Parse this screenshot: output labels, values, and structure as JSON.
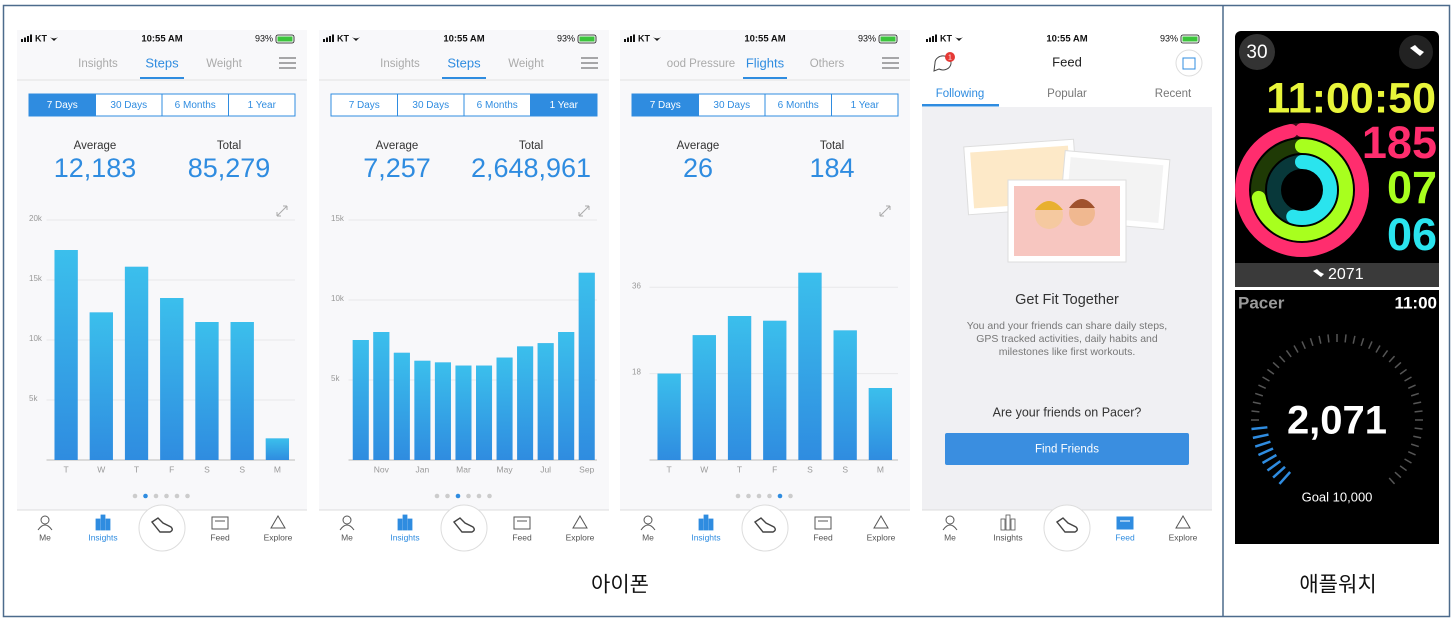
{
  "status_bar": {
    "carrier": "KT",
    "time": "10:55 AM",
    "battery": "93%"
  },
  "ranges": [
    "7 Days",
    "30 Days",
    "6 Months",
    "1 Year"
  ],
  "nav": [
    "Me",
    "Insights",
    "Feed",
    "Explore"
  ],
  "screens": [
    {
      "tabs": [
        "Insights",
        "Steps",
        "Weight"
      ],
      "active_tab": 1,
      "active_range": 0,
      "stats": [
        {
          "label": "Average",
          "value": "12,183"
        },
        {
          "label": "Total",
          "value": "85,279"
        }
      ],
      "nav_active": 1
    },
    {
      "tabs": [
        "Insights",
        "Steps",
        "Weight"
      ],
      "active_tab": 1,
      "active_range": 3,
      "stats": [
        {
          "label": "Average",
          "value": "7,257"
        },
        {
          "label": "Total",
          "value": "2,648,961"
        }
      ],
      "nav_active": 1
    },
    {
      "tabs": [
        "ood Pressure",
        "Flights",
        "Others"
      ],
      "active_tab": 1,
      "active_range": 0,
      "stats": [
        {
          "label": "Average",
          "value": "26"
        },
        {
          "label": "Total",
          "value": "184"
        }
      ],
      "nav_active": 1
    }
  ],
  "feed": {
    "title": "Feed",
    "badge": "1",
    "tabs": [
      "Following",
      "Popular",
      "Recent"
    ],
    "active_tab": 0,
    "heading": "Get Fit Together",
    "body": [
      "You and your friends can share daily steps,",
      "GPS tracked activities, daily habits and",
      "milestones like first workouts."
    ],
    "question": "Are your friends on Pacer?",
    "button": "Find Friends",
    "nav_active": 2
  },
  "chart_data": [
    {
      "type": "bar",
      "color": "#2f8ce0",
      "categories": [
        "T",
        "W",
        "T",
        "F",
        "S",
        "S",
        "M"
      ],
      "values": [
        17500,
        12300,
        16100,
        13500,
        11500,
        11500,
        1800
      ],
      "ylim": [
        0,
        20000
      ],
      "yticks": [
        {
          "value": 5000,
          "label": "5k"
        },
        {
          "value": 10000,
          "label": "10k"
        },
        {
          "value": 15000,
          "label": "15k"
        },
        {
          "value": 20000,
          "label": "20k"
        }
      ]
    },
    {
      "type": "bar",
      "color": "#2f8ce0",
      "categories": [
        null,
        "Nov",
        null,
        "Jan",
        null,
        "Mar",
        null,
        "May",
        null,
        "Jul",
        null,
        "Sep"
      ],
      "values": [
        7500,
        8000,
        6700,
        6200,
        6100,
        5900,
        5900,
        6400,
        7100,
        7300,
        8000,
        11700
      ],
      "ylim": [
        0,
        15000
      ],
      "yticks": [
        {
          "value": 5000,
          "label": "5k"
        },
        {
          "value": 10000,
          "label": "10k"
        },
        {
          "value": 15000,
          "label": "15k"
        }
      ]
    },
    {
      "type": "bar",
      "color": "#2f8ce0",
      "categories": [
        "T",
        "W",
        "T",
        "F",
        "S",
        "S",
        "M"
      ],
      "values": [
        18,
        26,
        30,
        29,
        39,
        27,
        15
      ],
      "ylim": [
        0,
        50
      ],
      "yticks": [
        18,
        36
      ]
    }
  ],
  "watch": {
    "face1": {
      "complication": "30",
      "time": "11:00:50",
      "move": "185",
      "exercise": "07",
      "stand": "06",
      "steps": "2071"
    },
    "face2": {
      "app": "Pacer",
      "time": "11:00",
      "steps": "2,071",
      "goal": "Goal 10,000"
    }
  },
  "captions": {
    "phone": "아이폰",
    "watch": "애플워치"
  }
}
